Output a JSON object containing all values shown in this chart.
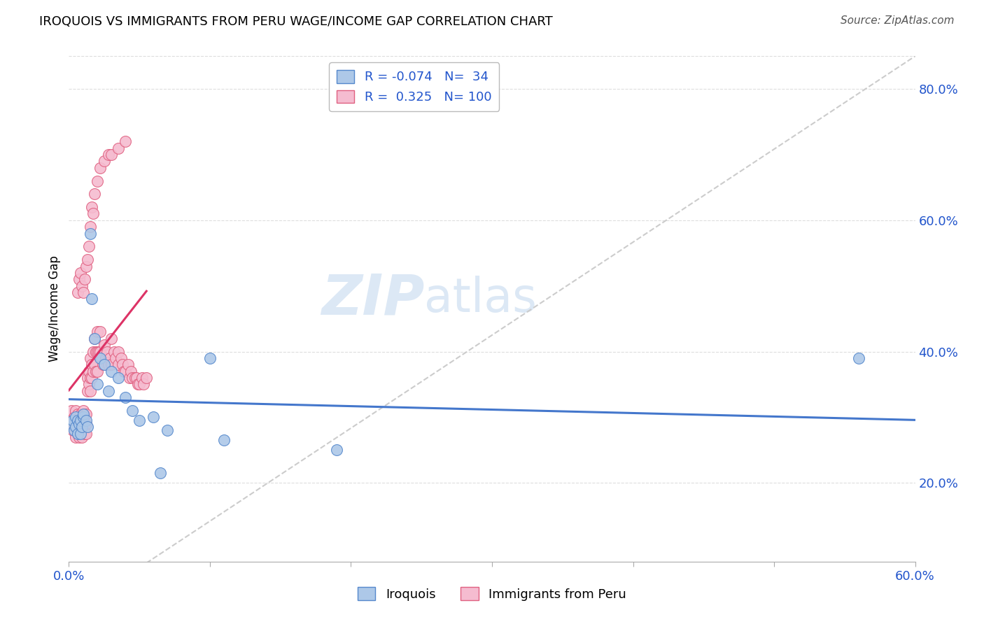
{
  "title": "IROQUOIS VS IMMIGRANTS FROM PERU WAGE/INCOME GAP CORRELATION CHART",
  "source": "Source: ZipAtlas.com",
  "ylabel": "Wage/Income Gap",
  "xlim": [
    0.0,
    0.6
  ],
  "ylim": [
    0.08,
    0.85
  ],
  "yticks_right": [
    0.2,
    0.4,
    0.6,
    0.8
  ],
  "ytick_labels_right": [
    "20.0%",
    "40.0%",
    "60.0%",
    "80.0%"
  ],
  "group1_name": "Iroquois",
  "group2_name": "Immigrants from Peru",
  "group1_color": "#adc8e8",
  "group2_color": "#f5bcd0",
  "group1_edge": "#5588cc",
  "group2_edge": "#e06080",
  "legend_r1": "-0.074",
  "legend_n1": "34",
  "legend_r2": "0.325",
  "legend_n2": "100",
  "label_color": "#2255cc",
  "trend_line1_color": "#4477cc",
  "trend_line2_color": "#dd3366",
  "diagonal_color": "#cccccc",
  "background_color": "#ffffff",
  "watermark_zip": "ZIP",
  "watermark_atlas": "atlas",
  "watermark_color": "#dce8f5",
  "grid_color": "#dddddd",
  "iroquois_x": [
    0.002,
    0.003,
    0.004,
    0.005,
    0.005,
    0.006,
    0.006,
    0.007,
    0.008,
    0.008,
    0.009,
    0.01,
    0.01,
    0.012,
    0.013,
    0.015,
    0.016,
    0.018,
    0.02,
    0.022,
    0.025,
    0.028,
    0.03,
    0.035,
    0.04,
    0.045,
    0.05,
    0.06,
    0.065,
    0.07,
    0.1,
    0.11,
    0.19,
    0.56
  ],
  "iroquois_y": [
    0.29,
    0.295,
    0.28,
    0.3,
    0.285,
    0.295,
    0.275,
    0.29,
    0.295,
    0.275,
    0.285,
    0.3,
    0.305,
    0.295,
    0.285,
    0.58,
    0.48,
    0.42,
    0.35,
    0.39,
    0.38,
    0.34,
    0.37,
    0.36,
    0.33,
    0.31,
    0.295,
    0.3,
    0.215,
    0.28,
    0.39,
    0.265,
    0.25,
    0.39
  ],
  "peru_x": [
    0.002,
    0.002,
    0.003,
    0.003,
    0.004,
    0.004,
    0.005,
    0.005,
    0.005,
    0.006,
    0.006,
    0.006,
    0.007,
    0.007,
    0.007,
    0.008,
    0.008,
    0.008,
    0.009,
    0.009,
    0.009,
    0.01,
    0.01,
    0.01,
    0.011,
    0.011,
    0.011,
    0.012,
    0.012,
    0.012,
    0.013,
    0.013,
    0.014,
    0.014,
    0.015,
    0.015,
    0.015,
    0.016,
    0.016,
    0.017,
    0.017,
    0.018,
    0.018,
    0.019,
    0.019,
    0.02,
    0.02,
    0.02,
    0.021,
    0.022,
    0.022,
    0.023,
    0.024,
    0.025,
    0.025,
    0.026,
    0.027,
    0.028,
    0.029,
    0.03,
    0.03,
    0.032,
    0.033,
    0.035,
    0.035,
    0.037,
    0.038,
    0.039,
    0.04,
    0.042,
    0.043,
    0.044,
    0.045,
    0.047,
    0.048,
    0.049,
    0.05,
    0.052,
    0.053,
    0.055,
    0.006,
    0.007,
    0.008,
    0.009,
    0.01,
    0.011,
    0.012,
    0.013,
    0.014,
    0.015,
    0.016,
    0.017,
    0.018,
    0.02,
    0.022,
    0.025,
    0.028,
    0.03,
    0.035,
    0.04
  ],
  "peru_y": [
    0.31,
    0.295,
    0.295,
    0.28,
    0.3,
    0.285,
    0.31,
    0.295,
    0.27,
    0.305,
    0.29,
    0.275,
    0.3,
    0.285,
    0.27,
    0.305,
    0.29,
    0.275,
    0.3,
    0.285,
    0.27,
    0.31,
    0.295,
    0.28,
    0.305,
    0.29,
    0.275,
    0.305,
    0.29,
    0.275,
    0.36,
    0.34,
    0.37,
    0.35,
    0.39,
    0.36,
    0.34,
    0.38,
    0.36,
    0.4,
    0.37,
    0.42,
    0.38,
    0.4,
    0.37,
    0.43,
    0.4,
    0.37,
    0.4,
    0.43,
    0.4,
    0.39,
    0.38,
    0.41,
    0.38,
    0.39,
    0.4,
    0.38,
    0.39,
    0.42,
    0.38,
    0.4,
    0.39,
    0.4,
    0.38,
    0.39,
    0.38,
    0.37,
    0.37,
    0.38,
    0.36,
    0.37,
    0.36,
    0.36,
    0.36,
    0.35,
    0.35,
    0.36,
    0.35,
    0.36,
    0.49,
    0.51,
    0.52,
    0.5,
    0.49,
    0.51,
    0.53,
    0.54,
    0.56,
    0.59,
    0.62,
    0.61,
    0.64,
    0.66,
    0.68,
    0.69,
    0.7,
    0.7,
    0.71,
    0.72
  ]
}
